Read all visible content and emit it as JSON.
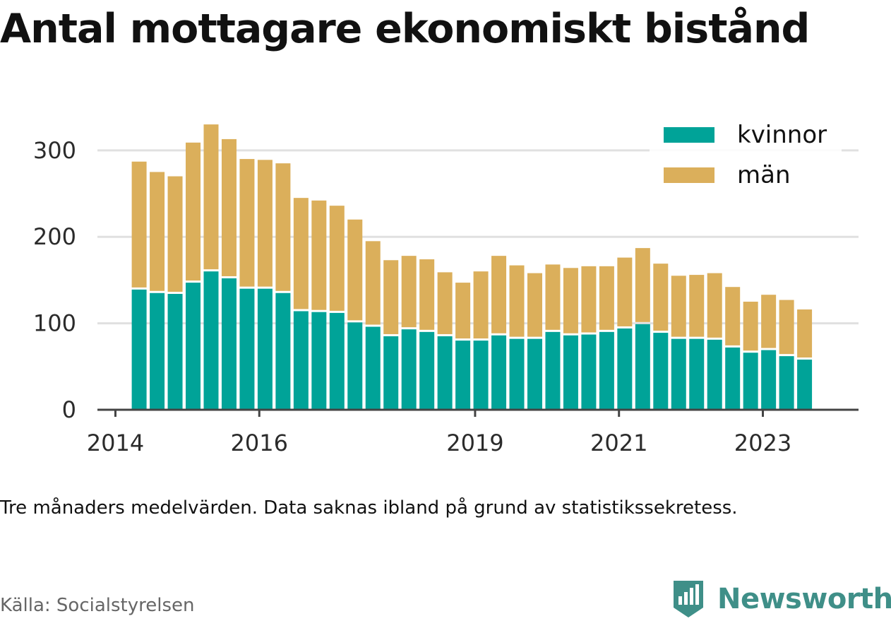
{
  "chart_data": {
    "type": "bar",
    "stacked": true,
    "title": "Antal mottagare ekonomiskt bistånd",
    "xlabel": "",
    "ylabel": "",
    "ylim": [
      0,
      335
    ],
    "yticks": [
      0,
      100,
      200,
      300
    ],
    "xlim": [
      2013.75,
      2024.33
    ],
    "xticks": [
      {
        "value": 2014,
        "label": "2014"
      },
      {
        "value": 2016,
        "label": "2016"
      },
      {
        "value": 2019,
        "label": "2019"
      },
      {
        "value": 2021,
        "label": "2021"
      },
      {
        "value": 2023,
        "label": "2023"
      }
    ],
    "x": [
      2014.33,
      2014.58,
      2014.83,
      2015.08,
      2015.33,
      2015.58,
      2015.83,
      2016.08,
      2016.33,
      2016.58,
      2016.83,
      2017.08,
      2017.33,
      2017.58,
      2017.83,
      2018.08,
      2018.33,
      2018.58,
      2018.83,
      2019.08,
      2019.33,
      2019.58,
      2019.83,
      2020.08,
      2020.33,
      2020.58,
      2020.83,
      2021.08,
      2021.33,
      2021.58,
      2021.83,
      2022.08,
      2022.33,
      2022.58,
      2022.83,
      2023.08,
      2023.33,
      2023.58
    ],
    "series": [
      {
        "name": "kvinnor",
        "color": "#00a398",
        "values": [
          139,
          135,
          134,
          147,
          160,
          152,
          140,
          140,
          135,
          114,
          113,
          112,
          101,
          96,
          85,
          93,
          90,
          85,
          80,
          80,
          86,
          82,
          82,
          90,
          86,
          87,
          90,
          94,
          99,
          89,
          82,
          82,
          81,
          72,
          66,
          69,
          62,
          58
        ]
      },
      {
        "name": "män",
        "color": "#dbaf5b",
        "values": [
          148,
          140,
          136,
          162,
          170,
          161,
          150,
          149,
          150,
          131,
          129,
          124,
          119,
          99,
          88,
          85,
          84,
          74,
          67,
          80,
          92,
          85,
          76,
          78,
          78,
          79,
          76,
          82,
          88,
          80,
          73,
          74,
          77,
          70,
          59,
          64,
          65,
          58
        ]
      }
    ],
    "legend": "top-right",
    "grid": true
  },
  "note": "Tre månaders medelvärden. Data saknas ibland på grund av statistikssekretess.",
  "source": "Källa: Socialstyrelsen",
  "brand": {
    "name": "Newsworthy",
    "color": "#3f8f88",
    "icon": "newsworthy-logo-icon"
  },
  "colors": {
    "grid": "#e0e0e0",
    "axis": "#444444",
    "bar_gap": "#ffffff"
  }
}
